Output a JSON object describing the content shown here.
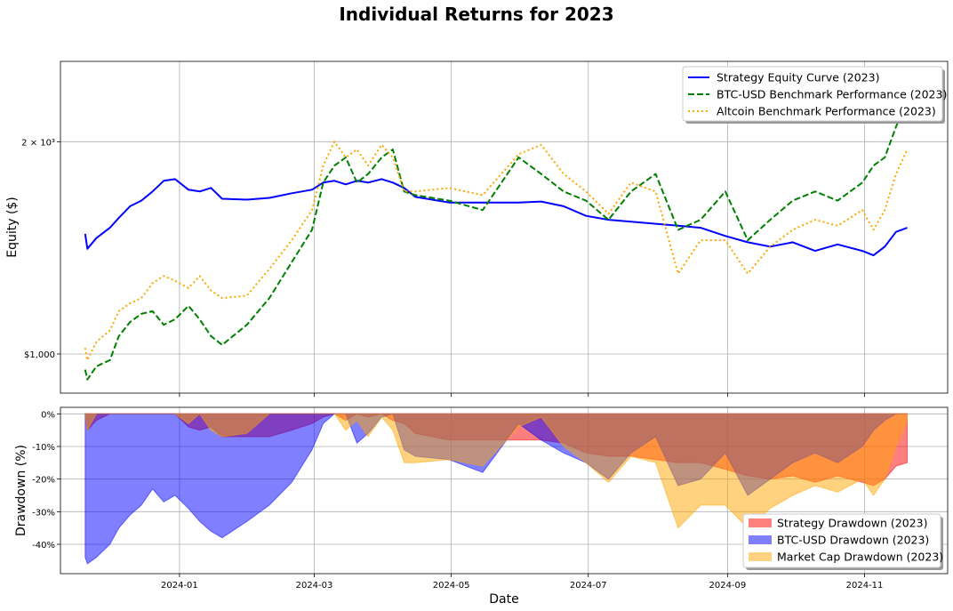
{
  "chart_data": [
    {
      "type": "line",
      "title": "Individual Returns for 2023",
      "ylabel": "Equity ($)",
      "xlabel": "",
      "yscale": "log",
      "ylim": [
        880,
        2600
      ],
      "xlim": [
        "2023-11-09",
        "2024-12-08"
      ],
      "grid": true,
      "legend_position": "top-right",
      "y_ticks": [
        {
          "value": 1000,
          "label": "$1,000"
        },
        {
          "value": 2000,
          "label": "2 × 10³"
        }
      ],
      "series": [
        {
          "name": "Strategy Equity Curve (2023)",
          "color": "#0000ff",
          "dash": "solid",
          "x": [
            "2023-11-20",
            "2023-11-21",
            "2023-11-25",
            "2023-12-01",
            "2023-12-05",
            "2023-12-10",
            "2023-12-15",
            "2023-12-20",
            "2023-12-25",
            "2023-12-30",
            "2024-01-05",
            "2024-01-10",
            "2024-01-15",
            "2024-01-20",
            "2024-01-31",
            "2024-02-10",
            "2024-02-20",
            "2024-02-29",
            "2024-03-05",
            "2024-03-10",
            "2024-03-15",
            "2024-03-20",
            "2024-03-25",
            "2024-03-31",
            "2024-04-05",
            "2024-04-10",
            "2024-04-15",
            "2024-04-30",
            "2024-05-15",
            "2024-05-31",
            "2024-06-10",
            "2024-06-20",
            "2024-06-30",
            "2024-07-10",
            "2024-07-20",
            "2024-07-31",
            "2024-08-10",
            "2024-08-20",
            "2024-08-31",
            "2024-09-10",
            "2024-09-20",
            "2024-09-30",
            "2024-10-10",
            "2024-10-20",
            "2024-10-31",
            "2024-11-05",
            "2024-11-10",
            "2024-11-15",
            "2024-11-20"
          ],
          "values": [
            1480,
            1410,
            1460,
            1510,
            1560,
            1620,
            1650,
            1700,
            1760,
            1770,
            1710,
            1700,
            1720,
            1660,
            1655,
            1665,
            1690,
            1710,
            1750,
            1760,
            1740,
            1760,
            1750,
            1770,
            1750,
            1720,
            1670,
            1640,
            1640,
            1640,
            1645,
            1620,
            1570,
            1550,
            1540,
            1530,
            1520,
            1510,
            1470,
            1440,
            1420,
            1440,
            1400,
            1430,
            1400,
            1380,
            1420,
            1490,
            1510
          ]
        },
        {
          "name": "BTC-USD Benchmark Performance (2023)",
          "color": "#008000",
          "dash": "dashed",
          "x": [
            "2023-11-20",
            "2023-11-21",
            "2023-11-25",
            "2023-12-01",
            "2023-12-05",
            "2023-12-10",
            "2023-12-15",
            "2023-12-20",
            "2023-12-25",
            "2023-12-30",
            "2024-01-05",
            "2024-01-10",
            "2024-01-15",
            "2024-01-20",
            "2024-01-31",
            "2024-02-10",
            "2024-02-20",
            "2024-02-29",
            "2024-03-05",
            "2024-03-10",
            "2024-03-15",
            "2024-03-20",
            "2024-03-25",
            "2024-03-31",
            "2024-04-05",
            "2024-04-10",
            "2024-04-15",
            "2024-04-30",
            "2024-05-15",
            "2024-05-31",
            "2024-06-10",
            "2024-06-20",
            "2024-06-30",
            "2024-07-10",
            "2024-07-20",
            "2024-07-31",
            "2024-08-10",
            "2024-08-20",
            "2024-08-31",
            "2024-09-10",
            "2024-09-20",
            "2024-09-30",
            "2024-10-10",
            "2024-10-20",
            "2024-10-31",
            "2024-11-05",
            "2024-11-10",
            "2024-11-15",
            "2024-11-20"
          ],
          "values": [
            950,
            920,
            960,
            980,
            1060,
            1110,
            1140,
            1150,
            1100,
            1120,
            1170,
            1120,
            1060,
            1030,
            1100,
            1200,
            1350,
            1500,
            1750,
            1850,
            1900,
            1750,
            1800,
            1900,
            1950,
            1700,
            1680,
            1650,
            1600,
            1900,
            1800,
            1700,
            1650,
            1550,
            1700,
            1800,
            1500,
            1550,
            1700,
            1450,
            1550,
            1650,
            1700,
            1650,
            1750,
            1850,
            1900,
            2100,
            2300
          ]
        },
        {
          "name": "Altcoin Benchmark Performance (2023)",
          "color": "#ffa500",
          "dash": "dotted",
          "x": [
            "2023-11-20",
            "2023-11-21",
            "2023-11-25",
            "2023-12-01",
            "2023-12-05",
            "2023-12-10",
            "2023-12-15",
            "2023-12-20",
            "2023-12-25",
            "2023-12-30",
            "2024-01-05",
            "2024-01-10",
            "2024-01-15",
            "2024-01-20",
            "2024-01-31",
            "2024-02-10",
            "2024-02-20",
            "2024-02-29",
            "2024-03-05",
            "2024-03-10",
            "2024-03-15",
            "2024-03-20",
            "2024-03-25",
            "2024-03-31",
            "2024-04-05",
            "2024-04-10",
            "2024-04-15",
            "2024-04-30",
            "2024-05-15",
            "2024-05-31",
            "2024-06-10",
            "2024-06-20",
            "2024-06-30",
            "2024-07-10",
            "2024-07-20",
            "2024-07-31",
            "2024-08-10",
            "2024-08-20",
            "2024-08-31",
            "2024-09-10",
            "2024-09-20",
            "2024-09-30",
            "2024-10-10",
            "2024-10-20",
            "2024-10-31",
            "2024-11-05",
            "2024-11-10",
            "2024-11-15",
            "2024-11-20"
          ],
          "values": [
            1020,
            980,
            1040,
            1080,
            1150,
            1180,
            1200,
            1260,
            1290,
            1270,
            1240,
            1290,
            1230,
            1200,
            1210,
            1320,
            1450,
            1600,
            1850,
            2000,
            1900,
            1950,
            1850,
            1980,
            1900,
            1700,
            1700,
            1720,
            1680,
            1920,
            1980,
            1800,
            1700,
            1580,
            1750,
            1700,
            1300,
            1450,
            1450,
            1300,
            1420,
            1500,
            1550,
            1520,
            1600,
            1500,
            1600,
            1800,
            1950
          ]
        }
      ]
    },
    {
      "type": "area",
      "ylabel": "Drawdown (%)",
      "xlabel": "Date",
      "ylim": [
        -49,
        2
      ],
      "xlim": [
        "2023-11-09",
        "2024-12-08"
      ],
      "grid": true,
      "legend_position": "lower-right",
      "y_ticks": [
        {
          "value": 0,
          "label": "0%"
        },
        {
          "value": -10,
          "label": "-10%"
        },
        {
          "value": -20,
          "label": "-20%"
        },
        {
          "value": -30,
          "label": "-30%"
        },
        {
          "value": -40,
          "label": "-40%"
        }
      ],
      "x_ticks": [
        {
          "value": "2024-01-01",
          "label": "2024-01"
        },
        {
          "value": "2024-03-01",
          "label": "2024-03"
        },
        {
          "value": "2024-05-01",
          "label": "2024-05"
        },
        {
          "value": "2024-07-01",
          "label": "2024-07"
        },
        {
          "value": "2024-09-01",
          "label": "2024-09"
        },
        {
          "value": "2024-11-01",
          "label": "2024-11"
        }
      ],
      "series": [
        {
          "name": "Strategy Drawdown (2023)",
          "color": "#ff0000",
          "alpha": 0.5,
          "x": [
            "2023-11-20",
            "2023-11-21",
            "2023-11-25",
            "2023-12-01",
            "2023-12-05",
            "2023-12-10",
            "2023-12-15",
            "2023-12-20",
            "2023-12-25",
            "2023-12-30",
            "2024-01-05",
            "2024-01-10",
            "2024-01-15",
            "2024-01-20",
            "2024-01-31",
            "2024-02-10",
            "2024-02-20",
            "2024-02-29",
            "2024-03-05",
            "2024-03-10",
            "2024-03-15",
            "2024-03-20",
            "2024-03-25",
            "2024-03-31",
            "2024-04-05",
            "2024-04-10",
            "2024-04-15",
            "2024-04-30",
            "2024-05-15",
            "2024-05-31",
            "2024-06-10",
            "2024-06-20",
            "2024-06-30",
            "2024-07-10",
            "2024-07-20",
            "2024-07-31",
            "2024-08-10",
            "2024-08-20",
            "2024-08-31",
            "2024-09-10",
            "2024-09-20",
            "2024-09-30",
            "2024-10-10",
            "2024-10-20",
            "2024-10-31",
            "2024-11-05",
            "2024-11-10",
            "2024-11-15",
            "2024-11-20"
          ],
          "values": [
            0,
            -5,
            -2,
            0,
            0,
            0,
            0,
            0,
            0,
            0,
            -4,
            -5,
            -4,
            -7,
            -7,
            -7,
            -5,
            -3,
            -1,
            0,
            -2,
            0,
            -1,
            0,
            -2,
            -3,
            -6,
            -8,
            -8,
            -8,
            -8,
            -9,
            -12,
            -13,
            -13,
            -14,
            -15,
            -15,
            -17,
            -19,
            -20,
            -19,
            -21,
            -19,
            -21,
            -22,
            -20,
            -16,
            -15
          ]
        },
        {
          "name": "BTC-USD Drawdown (2023)",
          "color": "#0000ff",
          "alpha": 0.5,
          "x": [
            "2023-11-20",
            "2023-11-21",
            "2023-11-25",
            "2023-12-01",
            "2023-12-05",
            "2023-12-10",
            "2023-12-15",
            "2023-12-20",
            "2023-12-25",
            "2023-12-30",
            "2024-01-05",
            "2024-01-10",
            "2024-01-15",
            "2024-01-20",
            "2024-01-31",
            "2024-02-10",
            "2024-02-20",
            "2024-02-29",
            "2024-03-05",
            "2024-03-10",
            "2024-03-15",
            "2024-03-20",
            "2024-03-25",
            "2024-03-31",
            "2024-04-05",
            "2024-04-10",
            "2024-04-15",
            "2024-04-30",
            "2024-05-15",
            "2024-05-31",
            "2024-06-10",
            "2024-06-20",
            "2024-06-30",
            "2024-07-10",
            "2024-07-20",
            "2024-07-31",
            "2024-08-10",
            "2024-08-20",
            "2024-08-31",
            "2024-09-10",
            "2024-09-20",
            "2024-09-30",
            "2024-10-10",
            "2024-10-20",
            "2024-10-31",
            "2024-11-05",
            "2024-11-10",
            "2024-11-15",
            "2024-11-20"
          ],
          "values": [
            -44,
            -46,
            -44,
            -40,
            -35,
            -31,
            -28,
            -23,
            -27,
            -25,
            -29,
            -33,
            -36,
            -38,
            -33,
            -28,
            -21,
            -11,
            -3,
            0,
            0,
            -9,
            -6,
            -1,
            0,
            -11,
            -13,
            -14,
            -18,
            -3,
            -8,
            -12,
            -15,
            -20,
            -12,
            -7,
            -22,
            -20,
            -12,
            -25,
            -20,
            -15,
            -12,
            -15,
            -10,
            -5,
            -2,
            0,
            0
          ]
        },
        {
          "name": "Market Cap Drawdown (2023)",
          "color": "#ffa500",
          "alpha": 0.5,
          "x": [
            "2023-11-20",
            "2023-11-21",
            "2023-11-25",
            "2023-12-01",
            "2023-12-05",
            "2023-12-10",
            "2023-12-15",
            "2023-12-20",
            "2023-12-25",
            "2023-12-30",
            "2024-01-05",
            "2024-01-10",
            "2024-01-15",
            "2024-01-20",
            "2024-01-31",
            "2024-02-10",
            "2024-02-20",
            "2024-02-29",
            "2024-03-05",
            "2024-03-10",
            "2024-03-15",
            "2024-03-20",
            "2024-03-25",
            "2024-03-31",
            "2024-04-05",
            "2024-04-10",
            "2024-04-15",
            "2024-04-30",
            "2024-05-15",
            "2024-05-31",
            "2024-06-10",
            "2024-06-20",
            "2024-06-30",
            "2024-07-10",
            "2024-07-20",
            "2024-07-31",
            "2024-08-10",
            "2024-08-20",
            "2024-08-31",
            "2024-09-10",
            "2024-09-20",
            "2024-09-30",
            "2024-10-10",
            "2024-10-20",
            "2024-10-31",
            "2024-11-05",
            "2024-11-10",
            "2024-11-15",
            "2024-11-20"
          ],
          "values": [
            0,
            -5,
            0,
            0,
            0,
            0,
            0,
            0,
            0,
            0,
            -3,
            0,
            -5,
            -7,
            -6,
            0,
            0,
            0,
            0,
            0,
            -5,
            -2,
            -7,
            -1,
            -5,
            -15,
            -15,
            -14,
            -16,
            -4,
            -1,
            -10,
            -15,
            -21,
            -13,
            -15,
            -35,
            -28,
            -28,
            -35,
            -29,
            -25,
            -22,
            -24,
            -20,
            -25,
            -20,
            -10,
            -2
          ]
        }
      ]
    }
  ]
}
